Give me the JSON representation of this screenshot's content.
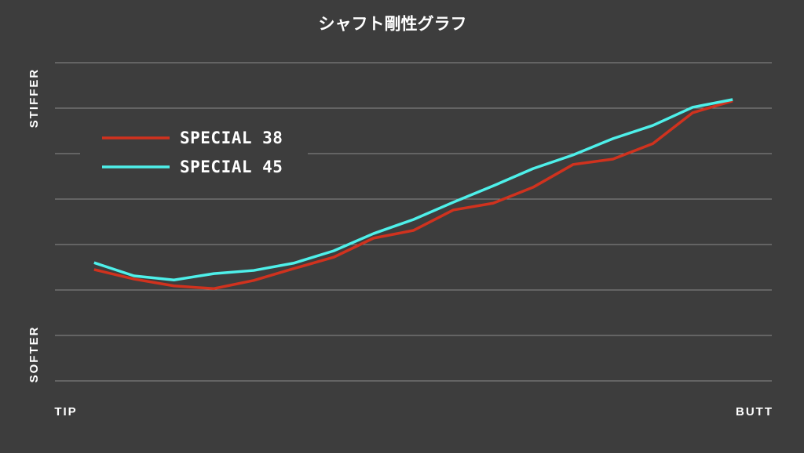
{
  "chart_data": {
    "type": "line",
    "title": "シャフト剛性グラフ",
    "x_start_label": "TIP",
    "x_end_label": "BUTT",
    "y_top_label": "STIFFER",
    "y_bottom_label": "SOFTER",
    "x": [
      1,
      2,
      3,
      4,
      5,
      6,
      7,
      8,
      9,
      10,
      11,
      12,
      13,
      14,
      15,
      16,
      17
    ],
    "xlim": [
      0,
      18
    ],
    "ylim": [
      0,
      7
    ],
    "yticks": [
      0,
      1,
      2,
      3,
      4,
      5,
      6,
      7
    ],
    "grid": true,
    "legend": "upper left",
    "series": [
      {
        "name": "SPECIAL 38",
        "color": "#d0321e",
        "values": [
          2.45,
          2.24,
          2.09,
          2.03,
          2.21,
          2.47,
          2.72,
          3.14,
          3.31,
          3.76,
          3.91,
          4.26,
          4.76,
          4.88,
          5.22,
          5.9,
          6.16
        ]
      },
      {
        "name": "SPECIAL 45",
        "color": "#4ef0ea",
        "values": [
          2.6,
          2.31,
          2.22,
          2.36,
          2.43,
          2.59,
          2.86,
          3.24,
          3.55,
          3.93,
          4.29,
          4.67,
          4.97,
          5.33,
          5.62,
          6.02,
          6.19
        ]
      }
    ]
  }
}
